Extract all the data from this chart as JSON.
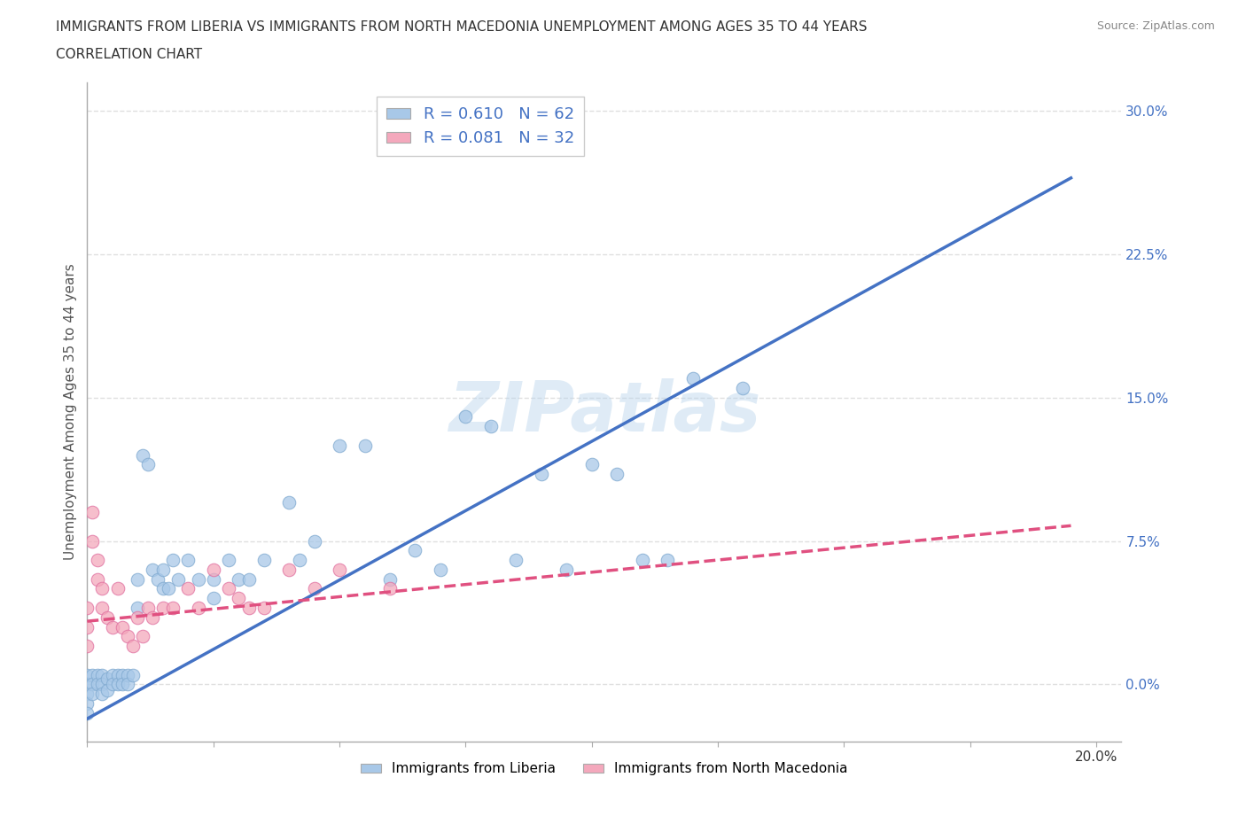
{
  "title_line1": "IMMIGRANTS FROM LIBERIA VS IMMIGRANTS FROM NORTH MACEDONIA UNEMPLOYMENT AMONG AGES 35 TO 44 YEARS",
  "title_line2": "CORRELATION CHART",
  "source": "Source: ZipAtlas.com",
  "ylabel": "Unemployment Among Ages 35 to 44 years",
  "xlim": [
    0.0,
    0.205
  ],
  "ylim": [
    -0.03,
    0.315
  ],
  "yticks": [
    0.0,
    0.075,
    0.15,
    0.225,
    0.3
  ],
  "ytick_labels": [
    "0.0%",
    "7.5%",
    "15.0%",
    "22.5%",
    "30.0%"
  ],
  "xticks": [
    0.0,
    0.025,
    0.05,
    0.075,
    0.1,
    0.125,
    0.15,
    0.175,
    0.2
  ],
  "xtick_labels_show": {
    "0.0": "0.0%",
    "0.20": "20.0%"
  },
  "legend_entries": [
    {
      "label": "R = 0.610   N = 62",
      "color": "#a8c8e8"
    },
    {
      "label": "R = 0.081   N = 32",
      "color": "#f4a8bc"
    }
  ],
  "bottom_legend": [
    {
      "label": "Immigrants from Liberia",
      "color": "#a8c8e8"
    },
    {
      "label": "Immigrants from North Macedonia",
      "color": "#f4a8bc"
    }
  ],
  "liberia_x": [
    0.0,
    0.0,
    0.0,
    0.0,
    0.0,
    0.001,
    0.001,
    0.001,
    0.002,
    0.002,
    0.003,
    0.003,
    0.003,
    0.004,
    0.004,
    0.005,
    0.005,
    0.006,
    0.006,
    0.007,
    0.007,
    0.008,
    0.008,
    0.009,
    0.01,
    0.01,
    0.011,
    0.012,
    0.013,
    0.014,
    0.015,
    0.015,
    0.016,
    0.017,
    0.018,
    0.02,
    0.022,
    0.025,
    0.025,
    0.028,
    0.03,
    0.032,
    0.035,
    0.04,
    0.042,
    0.045,
    0.05,
    0.055,
    0.06,
    0.065,
    0.07,
    0.075,
    0.08,
    0.085,
    0.09,
    0.095,
    0.1,
    0.105,
    0.11,
    0.115,
    0.12,
    0.13
  ],
  "liberia_y": [
    0.005,
    0.0,
    -0.005,
    -0.01,
    -0.015,
    0.005,
    0.0,
    -0.005,
    0.005,
    0.0,
    0.005,
    0.0,
    -0.005,
    0.003,
    -0.003,
    0.005,
    0.0,
    0.005,
    0.0,
    0.005,
    0.0,
    0.005,
    0.0,
    0.005,
    0.055,
    0.04,
    0.12,
    0.115,
    0.06,
    0.055,
    0.06,
    0.05,
    0.05,
    0.065,
    0.055,
    0.065,
    0.055,
    0.055,
    0.045,
    0.065,
    0.055,
    0.055,
    0.065,
    0.095,
    0.065,
    0.075,
    0.125,
    0.125,
    0.055,
    0.07,
    0.06,
    0.14,
    0.135,
    0.065,
    0.11,
    0.06,
    0.115,
    0.11,
    0.065,
    0.065,
    0.16,
    0.155
  ],
  "macedonia_x": [
    0.0,
    0.0,
    0.0,
    0.001,
    0.001,
    0.002,
    0.002,
    0.003,
    0.003,
    0.004,
    0.005,
    0.006,
    0.007,
    0.008,
    0.009,
    0.01,
    0.011,
    0.012,
    0.013,
    0.015,
    0.017,
    0.02,
    0.022,
    0.025,
    0.028,
    0.03,
    0.032,
    0.035,
    0.04,
    0.045,
    0.05,
    0.06
  ],
  "macedonia_y": [
    0.04,
    0.03,
    0.02,
    0.09,
    0.075,
    0.065,
    0.055,
    0.05,
    0.04,
    0.035,
    0.03,
    0.05,
    0.03,
    0.025,
    0.02,
    0.035,
    0.025,
    0.04,
    0.035,
    0.04,
    0.04,
    0.05,
    0.04,
    0.06,
    0.05,
    0.045,
    0.04,
    0.04,
    0.06,
    0.05,
    0.06,
    0.05
  ],
  "liberia_trend_x": [
    0.0,
    0.195
  ],
  "liberia_trend_y": [
    -0.018,
    0.265
  ],
  "macedonia_trend_x": [
    0.0,
    0.195
  ],
  "macedonia_trend_y": [
    0.033,
    0.083
  ],
  "watermark": "ZIPatlas",
  "grid_color": "#d8d8d8",
  "liberia_color": "#a8c8e8",
  "liberia_edge": "#80aad0",
  "macedonia_color": "#f4a8bc",
  "macedonia_edge": "#e070a0",
  "liberia_line_color": "#4472c4",
  "macedonia_line_color": "#e05080",
  "tick_color": "#4472c4",
  "bg_color": "#ffffff"
}
